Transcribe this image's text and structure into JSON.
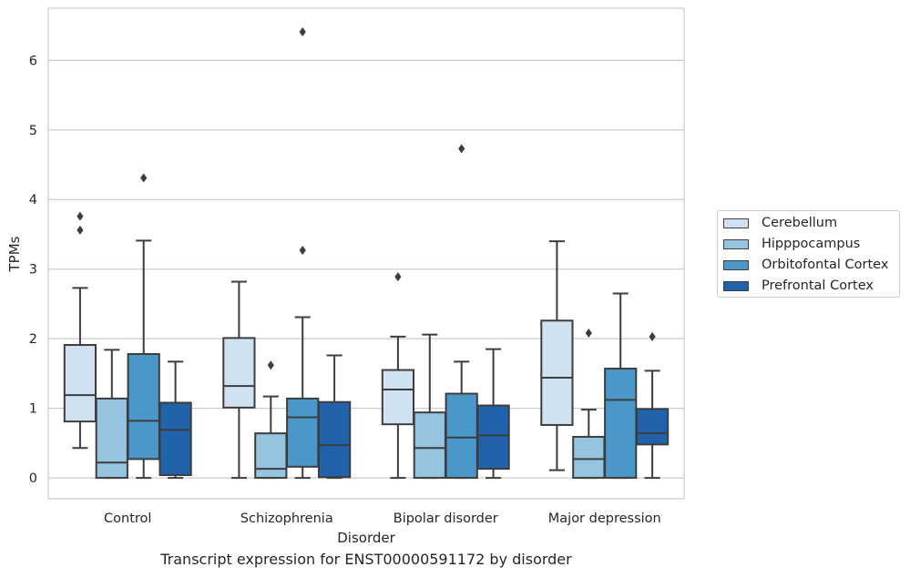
{
  "chart_data": {
    "type": "box",
    "xlabel": "Disorder",
    "ylabel": "TPMs",
    "caption": "Transcript expression for ENST00000591172 by disorder",
    "ylim": [
      -0.3,
      6.75
    ],
    "yticks": [
      "0",
      "1",
      "2",
      "3",
      "4",
      "5",
      "6"
    ],
    "grid": true,
    "legend_position": "right",
    "categories": [
      "Control",
      "Schizophrenia",
      "Bipolar disorder",
      "Major depression"
    ],
    "series": [
      {
        "name": "Cerebellum",
        "color": "#d0e1f1",
        "boxes": [
          {
            "whislo": 0.43,
            "q1": 0.81,
            "med": 1.19,
            "q3": 1.91,
            "whishi": 2.73,
            "fliers": [
              3.76,
              3.56
            ]
          },
          {
            "whislo": 0.0,
            "q1": 1.01,
            "med": 1.32,
            "q3": 2.01,
            "whishi": 2.82,
            "fliers": []
          },
          {
            "whislo": 0.0,
            "q1": 0.77,
            "med": 1.27,
            "q3": 1.55,
            "whishi": 2.03,
            "fliers": [
              2.89
            ]
          },
          {
            "whislo": 0.11,
            "q1": 0.76,
            "med": 1.44,
            "q3": 2.26,
            "whishi": 3.4,
            "fliers": []
          }
        ]
      },
      {
        "name": "Hipppocampus",
        "color": "#94c4df",
        "boxes": [
          {
            "whislo": 0.0,
            "q1": 0.0,
            "med": 0.22,
            "q3": 1.14,
            "whishi": 1.84,
            "fliers": []
          },
          {
            "whislo": 0.0,
            "q1": 0.0,
            "med": 0.13,
            "q3": 0.64,
            "whishi": 1.17,
            "fliers": [
              1.62
            ]
          },
          {
            "whislo": 0.0,
            "q1": 0.0,
            "med": 0.43,
            "q3": 0.94,
            "whishi": 2.06,
            "fliers": []
          },
          {
            "whislo": 0.0,
            "q1": 0.0,
            "med": 0.27,
            "q3": 0.59,
            "whishi": 0.98,
            "fliers": [
              2.08
            ]
          }
        ]
      },
      {
        "name": "Orbitofontal Cortex",
        "color": "#4a98c9",
        "boxes": [
          {
            "whislo": 0.0,
            "q1": 0.27,
            "med": 0.82,
            "q3": 1.78,
            "whishi": 3.41,
            "fliers": [
              4.31
            ]
          },
          {
            "whislo": 0.0,
            "q1": 0.16,
            "med": 0.87,
            "q3": 1.14,
            "whishi": 2.31,
            "fliers": [
              3.27,
              6.41
            ]
          },
          {
            "whislo": 0.0,
            "q1": 0.0,
            "med": 0.58,
            "q3": 1.21,
            "whishi": 1.67,
            "fliers": [
              4.73
            ]
          },
          {
            "whislo": 0.0,
            "q1": 0.0,
            "med": 1.12,
            "q3": 1.57,
            "whishi": 2.65,
            "fliers": []
          }
        ]
      },
      {
        "name": "Prefrontal Cortex",
        "color": "#2163aa",
        "boxes": [
          {
            "whislo": 0.0,
            "q1": 0.04,
            "med": 0.69,
            "q3": 1.08,
            "whishi": 1.67,
            "fliers": []
          },
          {
            "whislo": 0.0,
            "q1": 0.01,
            "med": 0.47,
            "q3": 1.09,
            "whishi": 1.76,
            "fliers": []
          },
          {
            "whislo": 0.0,
            "q1": 0.13,
            "med": 0.61,
            "q3": 1.04,
            "whishi": 1.85,
            "fliers": []
          },
          {
            "whislo": 0.0,
            "q1": 0.48,
            "med": 0.64,
            "q3": 0.99,
            "whishi": 1.54,
            "fliers": [
              2.03
            ]
          }
        ]
      }
    ]
  }
}
